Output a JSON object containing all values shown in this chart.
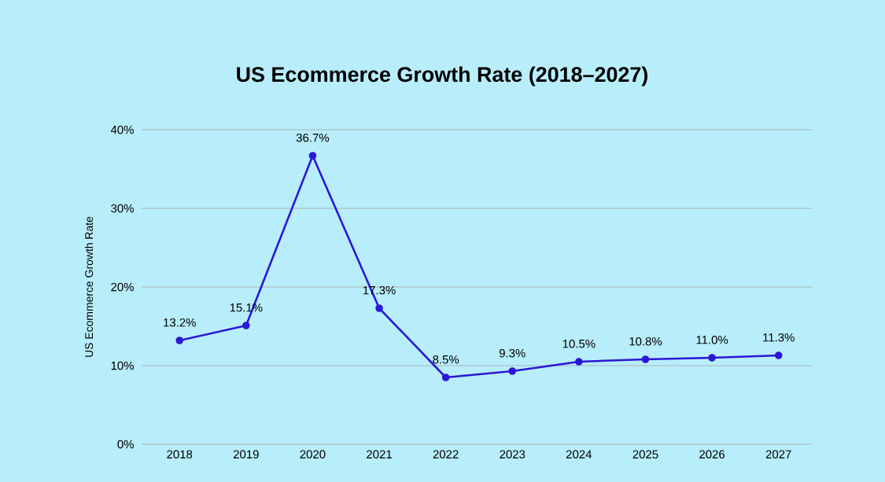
{
  "chart_data": {
    "type": "line",
    "title": "US Ecommerce Growth Rate (2018–2027)",
    "ylabel": "US Ecommerce Growth Rate",
    "categories": [
      "2018",
      "2019",
      "2020",
      "2021",
      "2022",
      "2023",
      "2024",
      "2025",
      "2026",
      "2027"
    ],
    "values": [
      13.2,
      15.1,
      36.7,
      17.3,
      8.5,
      9.3,
      10.5,
      10.8,
      11.0,
      11.3
    ],
    "value_labels": [
      "13.2%",
      "15.1%",
      "36.7%",
      "17.3%",
      "8.5%",
      "9.3%",
      "10.5%",
      "10.8%",
      "11.0%",
      "11.3%"
    ],
    "color": "#2b17d6",
    "marker": "circle",
    "line_style": "solid",
    "ylim": [
      0,
      40
    ],
    "yticks": [
      {
        "value": 0,
        "label": "0%"
      },
      {
        "value": 10,
        "label": "10%"
      },
      {
        "value": 20,
        "label": "20%"
      },
      {
        "value": 30,
        "label": "30%"
      },
      {
        "value": 40,
        "label": "40%"
      }
    ],
    "grid": "y"
  }
}
